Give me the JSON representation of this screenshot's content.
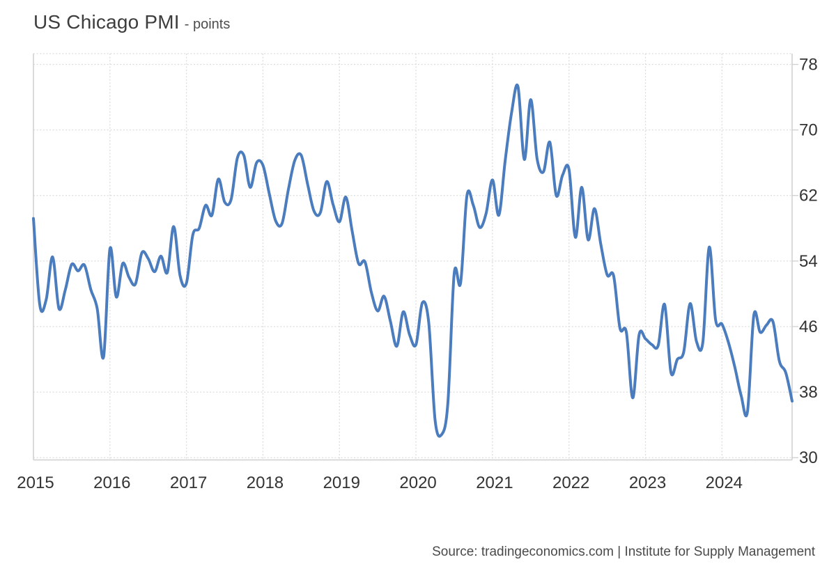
{
  "header": {
    "title": "US Chicago PMI",
    "subtitle": "- points"
  },
  "source": {
    "label": "Source: tradingeconomics.com | Institute for Supply Management"
  },
  "colors": {
    "line": "#4a7cbe",
    "grid": "#dcdcdc",
    "axis": "#cfcfcf",
    "tick_text": "#333333"
  },
  "chart_data": {
    "type": "line",
    "title": "US Chicago PMI",
    "ylabel": "points",
    "frequency": "monthly",
    "x_start": "2015-01",
    "x_end": "2024-12",
    "x_tick_labels": [
      "2015",
      "2016",
      "2017",
      "2018",
      "2019",
      "2020",
      "2021",
      "2022",
      "2023",
      "2024"
    ],
    "y_ticks": [
      78,
      70,
      62,
      54,
      46,
      38,
      30
    ],
    "ylim": [
      30,
      78
    ],
    "grid": "dotted",
    "legend": "none",
    "series": [
      {
        "name": "US Chicago PMI",
        "color": "#4a7cbe",
        "values": [
          59.2,
          48.6,
          49.3,
          54.5,
          48.2,
          50.5,
          53.6,
          52.8,
          53.5,
          50.5,
          48.2,
          42.3,
          55.5,
          49.6,
          53.7,
          52.0,
          51.2,
          55.0,
          54.3,
          52.7,
          54.6,
          52.6,
          58.2,
          52.2,
          51.3,
          57.2,
          58.0,
          60.8,
          59.6,
          64.0,
          61.2,
          61.5,
          66.6,
          66.9,
          63.0,
          66.0,
          65.7,
          62.2,
          58.9,
          58.6,
          62.8,
          66.3,
          66.9,
          63.4,
          60.1,
          59.9,
          63.7,
          60.9,
          58.8,
          61.8,
          57.6,
          53.7,
          53.9,
          50.2,
          47.9,
          49.7,
          46.6,
          43.6,
          47.8,
          45.0,
          43.8,
          48.9,
          46.5,
          34.6,
          32.8,
          36.6,
          52.5,
          51.3,
          62.0,
          60.8,
          58.1,
          59.8,
          63.9,
          59.6,
          66.3,
          72.1,
          75.3,
          66.4,
          73.7,
          66.5,
          64.9,
          68.5,
          62.0,
          64.5,
          65.2,
          56.9,
          63.0,
          56.6,
          60.4,
          56.0,
          52.3,
          52.2,
          45.8,
          45.3,
          37.3,
          45.0,
          44.5,
          43.8,
          43.7,
          48.7,
          40.4,
          42.0,
          42.9,
          48.8,
          44.2,
          44.1,
          55.7,
          46.8,
          46.3,
          44.1,
          41.1,
          37.6,
          35.6,
          47.4,
          45.3,
          46.2,
          46.6,
          41.8,
          40.4,
          36.9
        ]
      }
    ]
  }
}
